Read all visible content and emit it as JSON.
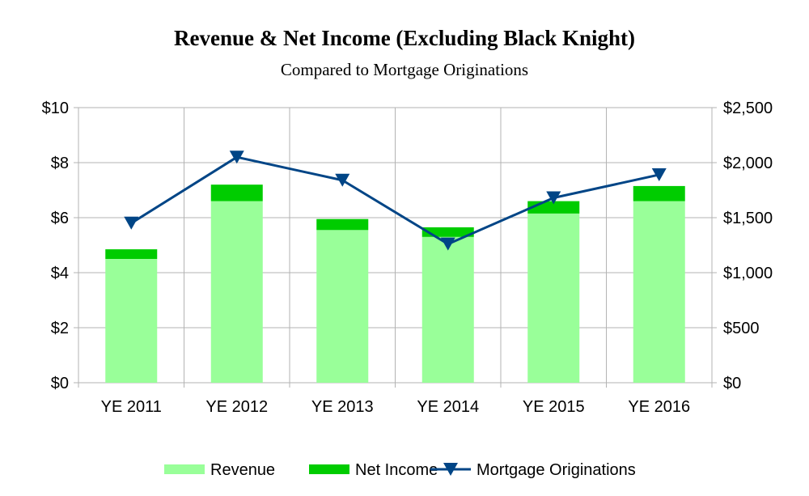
{
  "chart_data": {
    "type": "bar",
    "title": "Revenue & Net Income (Excluding Black Knight)",
    "subtitle": "Compared to Mortgage Originations",
    "categories": [
      "YE 2011",
      "YE 2012",
      "YE 2013",
      "YE 2014",
      "YE 2015",
      "YE 2016"
    ],
    "stacked": true,
    "series": [
      {
        "name": "Revenue",
        "axis": "left",
        "kind": "bar",
        "color": "#99ff99",
        "values": [
          4.5,
          6.6,
          5.55,
          5.3,
          6.15,
          6.6
        ]
      },
      {
        "name": "Net Income",
        "axis": "left",
        "kind": "bar",
        "color": "#00cc00",
        "values": [
          0.35,
          0.6,
          0.4,
          0.35,
          0.45,
          0.55
        ]
      },
      {
        "name": "Mortgage Originations",
        "axis": "right",
        "kind": "line",
        "marker": "triangle-down",
        "color": "#004586",
        "values": [
          1450,
          2050,
          1840,
          1260,
          1680,
          1890
        ]
      }
    ],
    "y_left": {
      "min": 0,
      "max": 10,
      "step": 2,
      "tick_labels": [
        "$0",
        "$2",
        "$4",
        "$6",
        "$8",
        "$10"
      ]
    },
    "y_right": {
      "min": 0,
      "max": 2500,
      "step": 500,
      "tick_labels": [
        "$0",
        "$500",
        "$1,000",
        "$1,500",
        "$2,000",
        "$2,500"
      ]
    },
    "grid": true,
    "legend_position": "bottom"
  }
}
